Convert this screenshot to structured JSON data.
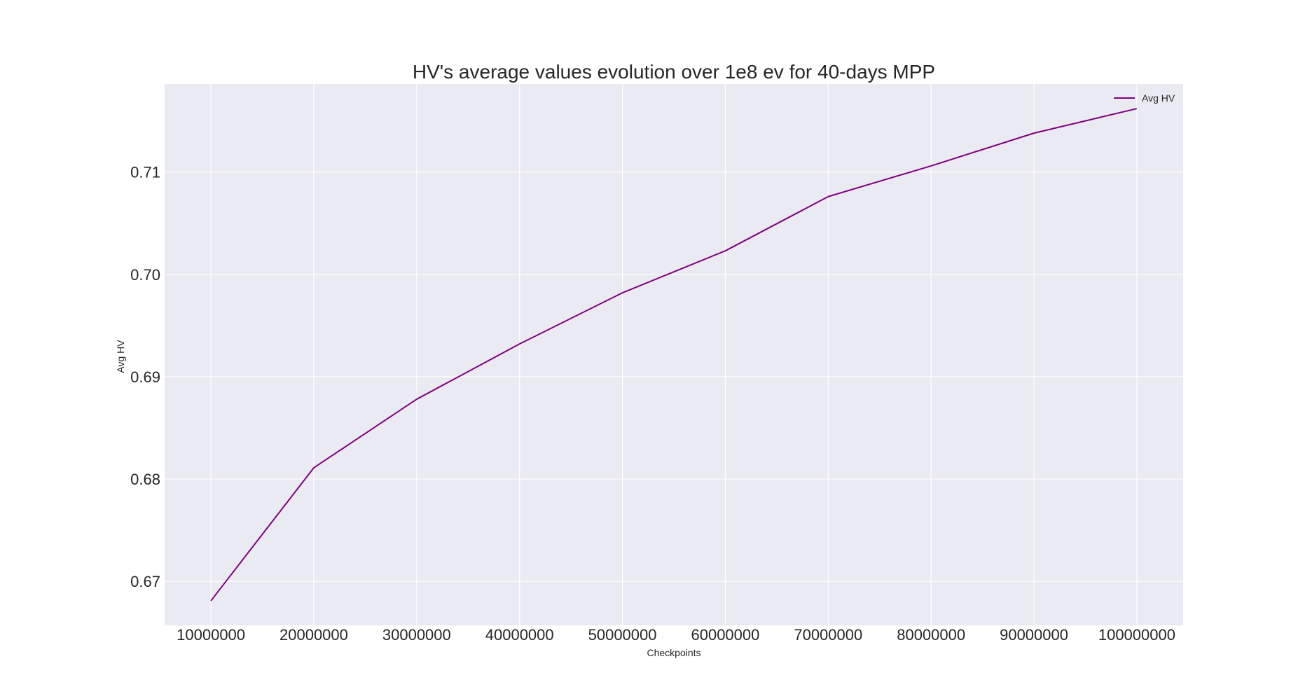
{
  "chart_data": {
    "type": "line",
    "title": "HV's average values evolution over 1e8 ev for 40-days MPP",
    "xlabel": "Checkpoints",
    "ylabel": "Avg HV",
    "x": [
      10000000,
      20000000,
      30000000,
      40000000,
      50000000,
      60000000,
      70000000,
      80000000,
      90000000,
      100000000
    ],
    "x_tick_labels": [
      "10000000",
      "20000000",
      "30000000",
      "40000000",
      "50000000",
      "60000000",
      "70000000",
      "80000000",
      "90000000",
      "100000000"
    ],
    "y_ticks": [
      0.67,
      0.68,
      0.69,
      0.7,
      0.71
    ],
    "y_tick_labels": [
      "0.67",
      "0.68",
      "0.69",
      "0.70",
      "0.71"
    ],
    "xlim": [
      5500000,
      104500000
    ],
    "ylim": [
      0.6657,
      0.7186
    ],
    "grid": true,
    "legend_position": "top-right",
    "series": [
      {
        "name": "Avg HV",
        "color": "#800080",
        "values": [
          0.6681,
          0.6811,
          0.6878,
          0.6932,
          0.6982,
          0.7023,
          0.7076,
          0.7106,
          0.7138,
          0.7162
        ]
      }
    ],
    "colors": {
      "plot_background": "#eaeaf2",
      "grid": "#ffffff",
      "text": "#262626"
    }
  }
}
